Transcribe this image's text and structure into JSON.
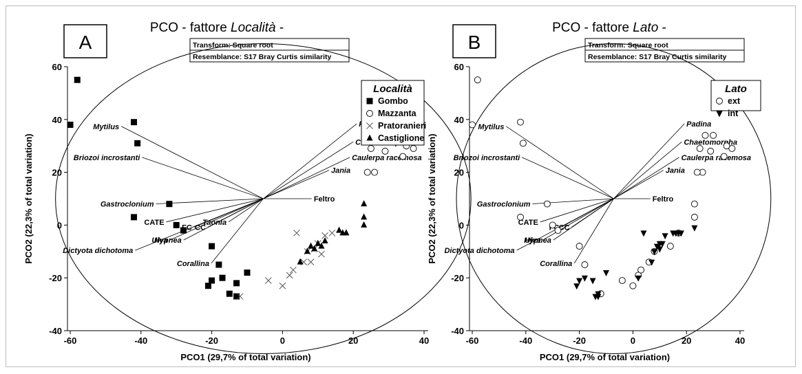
{
  "chart_data": [
    {
      "type": "scatter",
      "panel_letter": "A",
      "title_prefix": "PCO - fattore ",
      "title_italic": "Località",
      "title_suffix": " -",
      "info": [
        "Transform: Square root",
        "Resemblance: S17 Bray Curtis similarity"
      ],
      "xlabel": "PCO1 (29,7% of total variation)",
      "ylabel": "PCO2 (22,3% of total variation)",
      "xlim": [
        -62,
        40
      ],
      "ylim": [
        -40,
        60
      ],
      "xticks": [
        -60,
        -40,
        -20,
        0,
        20,
        40
      ],
      "yticks": [
        -40,
        -20,
        0,
        20,
        40,
        60
      ],
      "legend_title": "Località",
      "legend_position": "right",
      "series": [
        {
          "name": "Gombo",
          "marker": "square-filled",
          "x": [
            -58,
            -60,
            -42,
            -41,
            -42,
            -32,
            -30,
            -28,
            -20,
            -18,
            -17,
            -13,
            -10,
            -21,
            -15,
            -13,
            -20
          ],
          "y": [
            55,
            38,
            39,
            31,
            3,
            8,
            0,
            -2,
            -8,
            -15,
            -20,
            -22,
            -18,
            -23,
            -26,
            -27,
            -21
          ]
        },
        {
          "name": "Mazzanta",
          "marker": "circle-open",
          "x": [
            27,
            30,
            35,
            37,
            34,
            29,
            25,
            26,
            24
          ],
          "y": [
            34,
            34,
            30,
            29,
            26,
            28,
            29,
            20,
            20
          ]
        },
        {
          "name": "Pratoranieri",
          "marker": "x",
          "x": [
            -12,
            -4,
            0,
            2,
            3,
            6,
            8,
            10,
            12,
            14,
            7,
            4,
            9,
            11
          ],
          "y": [
            -27,
            -21,
            -23,
            -19,
            -17,
            -14,
            -14,
            -7,
            -4,
            -3,
            -10,
            -3,
            -9,
            -11
          ]
        },
        {
          "name": "Castiglione",
          "marker": "triangle-filled",
          "x": [
            23,
            23,
            23,
            16,
            17,
            18,
            12,
            10,
            9,
            8,
            7,
            5,
            11
          ],
          "y": [
            8,
            3,
            0,
            -2,
            -3,
            -3,
            -6,
            -7,
            -9,
            -8,
            -10,
            -14,
            -8
          ]
        }
      ],
      "vectors": [
        {
          "label": "Mytilus",
          "x": -41,
          "y": 28,
          "italic": true
        },
        {
          "label": "Briozoi incrostanti",
          "x": -35,
          "y": 16,
          "italic": true
        },
        {
          "label": "Padina",
          "x": 27,
          "y": 29,
          "italic": true
        },
        {
          "label": "Chaetomorpha",
          "x": 26,
          "y": 22,
          "italic": true
        },
        {
          "label": "Caulerpa racemosa",
          "x": 25,
          "y": 16,
          "italic": true
        },
        {
          "label": "Jania",
          "x": 19,
          "y": 11,
          "italic": true
        },
        {
          "label": "Feltro",
          "x": 14,
          "y": 0,
          "italic": false
        },
        {
          "label": "Gastroclonium",
          "x": -31,
          "y": -2,
          "italic": true
        },
        {
          "label": "CATE",
          "x": -28,
          "y": -9,
          "italic": false
        },
        {
          "label": "Ulva",
          "x": -27,
          "y": -16,
          "italic": true
        },
        {
          "label": "FC",
          "x": -20,
          "y": -11,
          "italic": false
        },
        {
          "label": "CC",
          "x": -16,
          "y": -11,
          "italic": false
        },
        {
          "label": "Hypnea",
          "x": -23,
          "y": -16,
          "italic": true
        },
        {
          "label": "Taonia",
          "x": -10,
          "y": -9,
          "italic": true
        },
        {
          "label": "Dictyota dichotoma",
          "x": -37,
          "y": -20,
          "italic": true
        },
        {
          "label": "Corallina",
          "x": -15,
          "y": -25,
          "italic": true
        }
      ],
      "circle_radius": 57
    },
    {
      "type": "scatter",
      "panel_letter": "B",
      "title_prefix": "PCO - fattore ",
      "title_italic": "Lato",
      "title_suffix": " -",
      "info": [
        "Transform: Square root",
        "Resemblance: S17 Bray Curtis similarity"
      ],
      "xlabel": "PCO1 (29,7% of total variation)",
      "ylabel": "PCO2 (22,3% of total variation)",
      "xlim": [
        -62,
        40
      ],
      "ylim": [
        -40,
        60
      ],
      "xticks": [
        -60,
        -40,
        -20,
        0,
        20,
        40
      ],
      "yticks": [
        -40,
        -20,
        0,
        20,
        40,
        60
      ],
      "legend_title": "Lato",
      "legend_position": "right",
      "series": [
        {
          "name": "ext",
          "marker": "circle-open",
          "x": [
            -58,
            -60,
            -42,
            -41,
            -42,
            -32,
            -30,
            -28,
            -20,
            -18,
            27,
            30,
            35,
            37,
            34,
            29,
            25,
            26,
            24,
            23,
            23,
            -12,
            -4,
            0,
            2,
            3,
            6,
            8,
            14,
            17
          ],
          "y": [
            55,
            38,
            39,
            31,
            3,
            8,
            0,
            -2,
            -8,
            -15,
            34,
            34,
            30,
            29,
            26,
            28,
            29,
            20,
            20,
            8,
            3,
            -26,
            -21,
            -23,
            -19,
            -17,
            -14,
            -10,
            -8,
            -3
          ]
        },
        {
          "name": "int",
          "marker": "triangle-down-filled",
          "x": [
            -21,
            -20,
            -18,
            -15,
            -13,
            -10,
            -13,
            -14,
            2,
            4,
            7,
            8,
            9,
            10,
            11,
            12,
            15,
            16,
            17,
            18,
            23,
            10
          ],
          "y": [
            -23,
            -21,
            -20,
            -21,
            -26,
            -18,
            -27,
            -27,
            -20,
            -3,
            -14,
            -10,
            -8,
            -7,
            -7,
            -4,
            -3,
            -3,
            -3,
            -3,
            -1,
            -9
          ]
        }
      ],
      "vectors": [
        {
          "label": "Mytilus",
          "x": -41,
          "y": 28,
          "italic": true
        },
        {
          "label": "Briozoi incrostanti",
          "x": -35,
          "y": 16,
          "italic": true
        },
        {
          "label": "Padina",
          "x": 27,
          "y": 29,
          "italic": true
        },
        {
          "label": "Chaetomorpha",
          "x": 26,
          "y": 22,
          "italic": true
        },
        {
          "label": "Caulerpa racemosa",
          "x": 25,
          "y": 16,
          "italic": true
        },
        {
          "label": "Jania",
          "x": 19,
          "y": 11,
          "italic": true
        },
        {
          "label": "Feltro",
          "x": 14,
          "y": 0,
          "italic": false
        },
        {
          "label": "Gastroclonium",
          "x": -31,
          "y": -2,
          "italic": true
        },
        {
          "label": "CATE",
          "x": -28,
          "y": -9,
          "italic": false
        },
        {
          "label": "Ulva",
          "x": -27,
          "y": -16,
          "italic": true
        },
        {
          "label": "FC",
          "x": -20,
          "y": -11,
          "italic": false
        },
        {
          "label": "CC",
          "x": -16,
          "y": -11,
          "italic": false
        },
        {
          "label": "Hypnea",
          "x": -23,
          "y": -16,
          "italic": true
        },
        {
          "label": "Dictyota dichotoma",
          "x": -37,
          "y": -20,
          "italic": true
        },
        {
          "label": "Corallina",
          "x": -15,
          "y": -25,
          "italic": true
        }
      ],
      "circle_radius": 57
    }
  ]
}
